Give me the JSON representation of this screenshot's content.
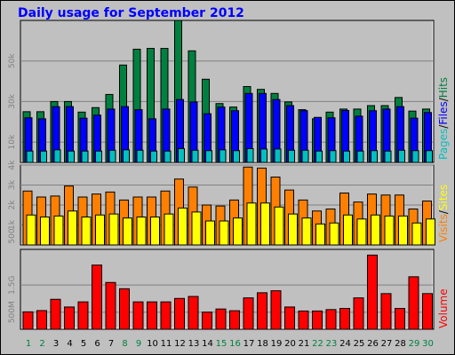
{
  "title": "Daily usage for September 2012",
  "colors": {
    "background": "#c0c0c0",
    "title": "#0000ff",
    "pages": "#00c0c0",
    "files": "#0000ff",
    "hits": "#008040",
    "visits": "#ff8000",
    "sites": "#ffff00",
    "volume": "#ff0000",
    "weekend_day": "#008040",
    "weekday": "#000000"
  },
  "chart_data": [
    {
      "type": "bar",
      "panel": "hits-files-pages",
      "legend": [
        "Pages",
        "/",
        "Files",
        "/",
        "Hits"
      ],
      "yticks": [
        "10k",
        "30k",
        "50k"
      ],
      "ylim": [
        0,
        70000
      ],
      "categories": [
        "1",
        "2",
        "3",
        "4",
        "5",
        "6",
        "7",
        "8",
        "9",
        "10",
        "11",
        "12",
        "13",
        "14",
        "15",
        "16",
        "17",
        "18",
        "19",
        "20",
        "21",
        "22",
        "23",
        "24",
        "25",
        "26",
        "27",
        "28",
        "29",
        "30"
      ],
      "weekend_days": [
        "1",
        "2",
        "8",
        "9",
        "15",
        "16",
        "22",
        "23",
        "29",
        "30"
      ],
      "series": [
        {
          "name": "Hits",
          "values": [
            25000,
            25000,
            30000,
            30000,
            24800,
            27000,
            33500,
            48000,
            55800,
            56200,
            56200,
            70000,
            55000,
            41000,
            29000,
            27300,
            37400,
            36000,
            34000,
            29800,
            26000,
            21500,
            24800,
            26300,
            26300,
            28000,
            28000,
            32000,
            25300,
            26300
          ]
        },
        {
          "name": "Files",
          "values": [
            22000,
            21500,
            27500,
            27500,
            21800,
            23300,
            26300,
            27500,
            26000,
            21500,
            26300,
            31000,
            29800,
            24000,
            27300,
            25500,
            34000,
            34000,
            31000,
            28000,
            25500,
            22200,
            22000,
            25600,
            22800,
            25500,
            26300,
            27500,
            21800,
            24600
          ]
        },
        {
          "name": "Pages",
          "values": [
            5600,
            5600,
            6200,
            5600,
            5600,
            5600,
            6000,
            6200,
            6000,
            5600,
            5600,
            6800,
            6000,
            5800,
            6200,
            5800,
            6800,
            6600,
            6600,
            6000,
            6000,
            5600,
            5800,
            5600,
            5600,
            5800,
            5600,
            6000,
            5800,
            5800
          ]
        }
      ]
    },
    {
      "type": "bar",
      "panel": "visits-sites",
      "legend": [
        "Visits",
        "/",
        "Sites"
      ],
      "yticks": [
        "500",
        "1k",
        "2k",
        "3k",
        "4k"
      ],
      "ylim": [
        0,
        4000
      ],
      "categories": [
        "1",
        "2",
        "3",
        "4",
        "5",
        "6",
        "7",
        "8",
        "9",
        "10",
        "11",
        "12",
        "13",
        "14",
        "15",
        "16",
        "17",
        "18",
        "19",
        "20",
        "21",
        "22",
        "23",
        "24",
        "25",
        "26",
        "27",
        "28",
        "29",
        "30"
      ],
      "series": [
        {
          "name": "Visits",
          "values": [
            2700,
            2400,
            2450,
            2950,
            2400,
            2550,
            2650,
            2250,
            2400,
            2400,
            2700,
            3300,
            2900,
            2000,
            1950,
            2250,
            3900,
            3850,
            3400,
            2750,
            2250,
            1700,
            1800,
            2600,
            2150,
            2550,
            2500,
            2500,
            1800,
            2200
          ]
        },
        {
          "name": "Sites",
          "values": [
            1500,
            1400,
            1450,
            1700,
            1400,
            1500,
            1550,
            1350,
            1400,
            1400,
            1550,
            1850,
            1650,
            1200,
            1200,
            1350,
            2100,
            2100,
            1900,
            1550,
            1350,
            1050,
            1100,
            1500,
            1300,
            1500,
            1450,
            1450,
            1100,
            1300
          ]
        }
      ]
    },
    {
      "type": "bar",
      "panel": "volume",
      "legend": [
        "Volume"
      ],
      "yticks": [
        "500M",
        "1.5G"
      ],
      "ylim": [
        0,
        2800
      ],
      "categories": [
        "1",
        "2",
        "3",
        "4",
        "5",
        "6",
        "7",
        "8",
        "9",
        "10",
        "11",
        "12",
        "13",
        "14",
        "15",
        "16",
        "17",
        "18",
        "19",
        "20",
        "21",
        "22",
        "23",
        "24",
        "25",
        "26",
        "27",
        "28",
        "29",
        "30"
      ],
      "series": [
        {
          "name": "Volume",
          "values": [
            610,
            655,
            1050,
            780,
            960,
            2250,
            1640,
            1420,
            960,
            960,
            960,
            1080,
            1150,
            600,
            710,
            650,
            1100,
            1280,
            1350,
            780,
            640,
            640,
            690,
            730,
            1100,
            2600,
            1250,
            730,
            1840,
            1250
          ]
        }
      ]
    }
  ]
}
